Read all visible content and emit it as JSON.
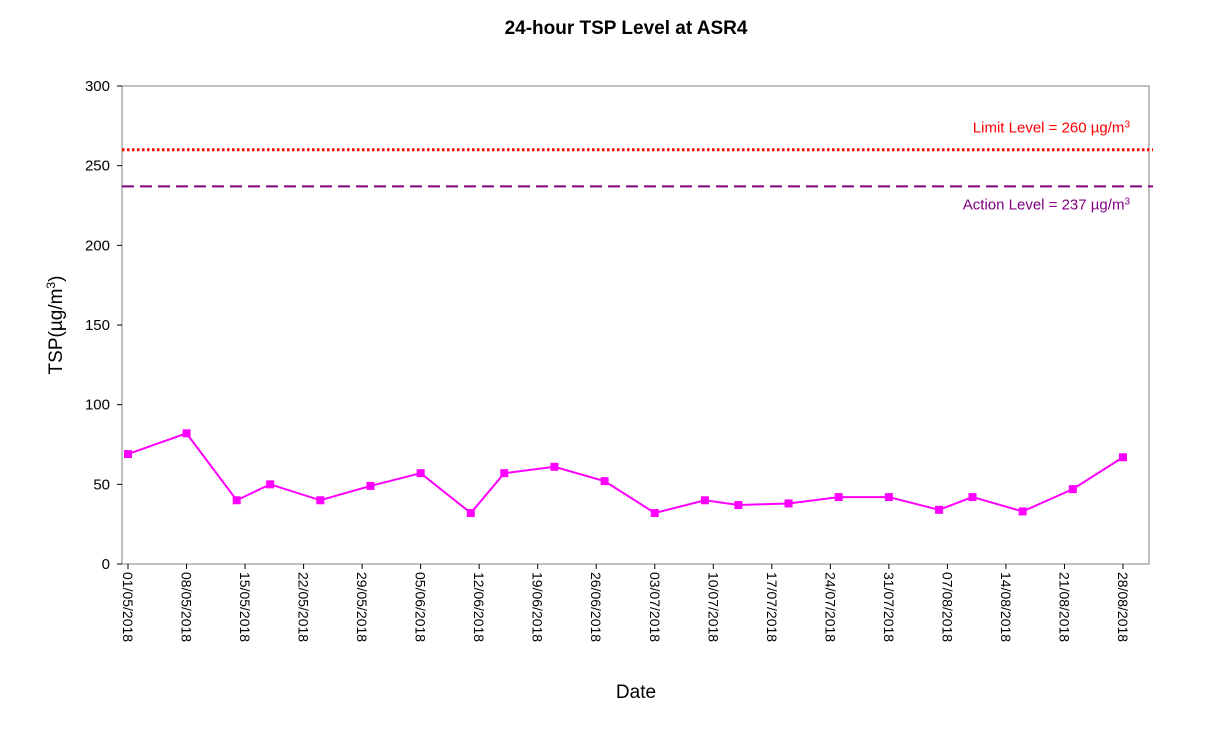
{
  "chart_data": {
    "type": "line",
    "title": "24-hour TSP Level at ASR4",
    "xlabel": "Date",
    "ylabel": {
      "main": "TSP(µg/m",
      "sup": "3",
      "close": ")"
    },
    "ylim": [
      0,
      300
    ],
    "yticks": [
      0,
      50,
      100,
      150,
      200,
      250,
      300
    ],
    "xlim": [
      "2018-05-01",
      "2018-08-28"
    ],
    "xtick_labels": [
      "01/05/2018",
      "08/05/2018",
      "15/05/2018",
      "22/05/2018",
      "29/05/2018",
      "05/06/2018",
      "12/06/2018",
      "19/06/2018",
      "26/06/2018",
      "03/07/2018",
      "10/07/2018",
      "17/07/2018",
      "24/07/2018",
      "31/07/2018",
      "07/08/2018",
      "14/08/2018",
      "21/08/2018",
      "28/08/2018"
    ],
    "xtick_dates": [
      "2018-05-01",
      "2018-05-08",
      "2018-05-15",
      "2018-05-22",
      "2018-05-29",
      "2018-06-05",
      "2018-06-12",
      "2018-06-19",
      "2018-06-26",
      "2018-07-03",
      "2018-07-10",
      "2018-07-17",
      "2018-07-24",
      "2018-07-31",
      "2018-08-07",
      "2018-08-14",
      "2018-08-21",
      "2018-08-28"
    ],
    "grid": false,
    "series": [
      {
        "color": "#ff00ff",
        "marker": "square",
        "points": [
          {
            "x": "2018-05-01",
            "y": 69
          },
          {
            "x": "2018-05-08",
            "y": 82
          },
          {
            "x": "2018-05-14",
            "y": 40
          },
          {
            "x": "2018-05-18",
            "y": 50
          },
          {
            "x": "2018-05-24",
            "y": 40
          },
          {
            "x": "2018-05-30",
            "y": 49
          },
          {
            "x": "2018-06-05",
            "y": 57
          },
          {
            "x": "2018-06-11",
            "y": 32
          },
          {
            "x": "2018-06-15",
            "y": 57
          },
          {
            "x": "2018-06-21",
            "y": 61
          },
          {
            "x": "2018-06-27",
            "y": 52
          },
          {
            "x": "2018-07-03",
            "y": 32
          },
          {
            "x": "2018-07-09",
            "y": 40
          },
          {
            "x": "2018-07-13",
            "y": 37
          },
          {
            "x": "2018-07-19",
            "y": 38
          },
          {
            "x": "2018-07-25",
            "y": 42
          },
          {
            "x": "2018-07-31",
            "y": 42
          },
          {
            "x": "2018-08-06",
            "y": 34
          },
          {
            "x": "2018-08-10",
            "y": 42
          },
          {
            "x": "2018-08-16",
            "y": 33
          },
          {
            "x": "2018-08-22",
            "y": 47
          },
          {
            "x": "2018-08-28",
            "y": 67
          }
        ]
      }
    ],
    "reference_lines": [
      {
        "value": 260,
        "color": "#ff0000",
        "style": "dotted",
        "label": "Limit Level = 260 µg/m",
        "label_sup": "3"
      },
      {
        "value": 237,
        "color": "#800080",
        "style": "dashed",
        "label": "Action Level = 237 µg/m",
        "label_sup": "3"
      }
    ]
  }
}
